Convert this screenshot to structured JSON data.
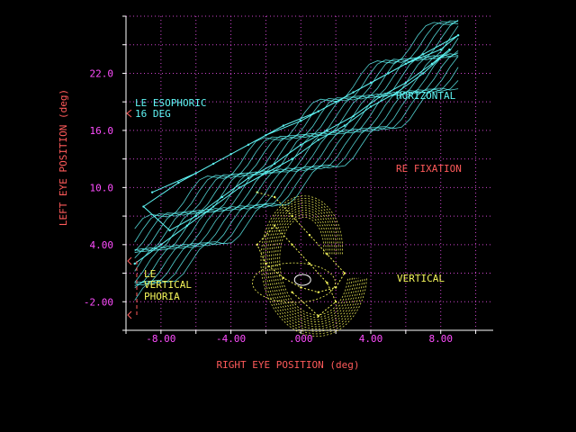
{
  "chart_data": {
    "type": "scatter",
    "title": "",
    "xlabel": "RIGHT EYE POSITION (deg)",
    "ylabel": "LEFT EYE POSITION (deg)",
    "xlim": [
      -10.0,
      11.0
    ],
    "ylim": [
      -5.0,
      28.0
    ],
    "grid": true,
    "x_ticks": [
      -8.0,
      -4.0,
      0.0,
      4.0,
      8.0
    ],
    "x_tick_labels": [
      "-8.00",
      "-4.00",
      ".000",
      "4.00",
      "8.00"
    ],
    "y_ticks": [
      -2.0,
      4.0,
      10.0,
      16.0,
      22.0
    ],
    "y_tick_labels": [
      "-2.00",
      "4.00",
      "10.0",
      "16.0",
      "22.0"
    ],
    "colors": {
      "axis_text": "#ff5a5a",
      "tick_text": "#ff4dff",
      "grid_dot": "#cc44cc",
      "horizontal": "#5ff5f5",
      "vertical": "#f5f55a",
      "white": "#ffffff"
    },
    "annotations": {
      "esophoric_line1": "LE ESOPHORIC",
      "esophoric_line2": "16 DEG",
      "horizontal": "HORIZONTAL",
      "re_fixation": "RE FIXATION",
      "vertical": "VERTICAL",
      "phoria_line1": "LE",
      "phoria_line2": "VERTICAL",
      "phoria_line3": "PHORIA"
    },
    "series": [
      {
        "name": "HORIZONTAL",
        "x": [
          -9.5,
          -8.0,
          -6.5,
          -5.0,
          -3.5,
          -2.0,
          -0.5,
          1.0,
          2.5,
          4.0,
          5.5,
          7.0,
          8.5,
          7.5,
          6.0,
          4.5,
          3.0,
          1.5,
          0.0,
          -1.5,
          -3.0,
          -4.5,
          -6.0,
          -7.5,
          -9.0,
          -7.0,
          -5.0,
          -3.0,
          -1.0,
          1.0,
          3.0,
          5.0,
          7.0,
          9.0,
          8.0,
          6.0,
          4.0,
          2.0,
          0.0,
          -2.0,
          -4.0,
          -6.0,
          -8.5
        ],
        "y": [
          2.0,
          4.0,
          6.0,
          8.0,
          10.0,
          11.5,
          13.0,
          15.0,
          16.5,
          18.5,
          20.0,
          22.0,
          24.5,
          23.0,
          21.0,
          19.5,
          17.5,
          16.0,
          14.5,
          12.5,
          11.0,
          9.0,
          7.0,
          5.5,
          8.0,
          10.5,
          12.5,
          14.5,
          16.5,
          18.0,
          20.0,
          22.0,
          24.0,
          26.0,
          24.5,
          23.0,
          21.0,
          19.0,
          17.0,
          15.5,
          13.5,
          11.5,
          9.5
        ]
      },
      {
        "name": "VERTICAL",
        "x": [
          -2.5,
          -1.5,
          -0.5,
          0.5,
          1.5,
          2.5,
          2.0,
          1.0,
          0.0,
          -1.0,
          -2.0,
          -2.5,
          -1.5,
          -0.5,
          0.5,
          1.5,
          2.0,
          1.0,
          -0.5
        ],
        "y": [
          9.5,
          9.0,
          7.0,
          5.0,
          3.0,
          1.0,
          -0.5,
          -1.0,
          -0.5,
          0.5,
          2.0,
          4.0,
          6.0,
          4.0,
          2.0,
          0.0,
          -2.0,
          -3.5,
          -1.0
        ]
      }
    ]
  }
}
